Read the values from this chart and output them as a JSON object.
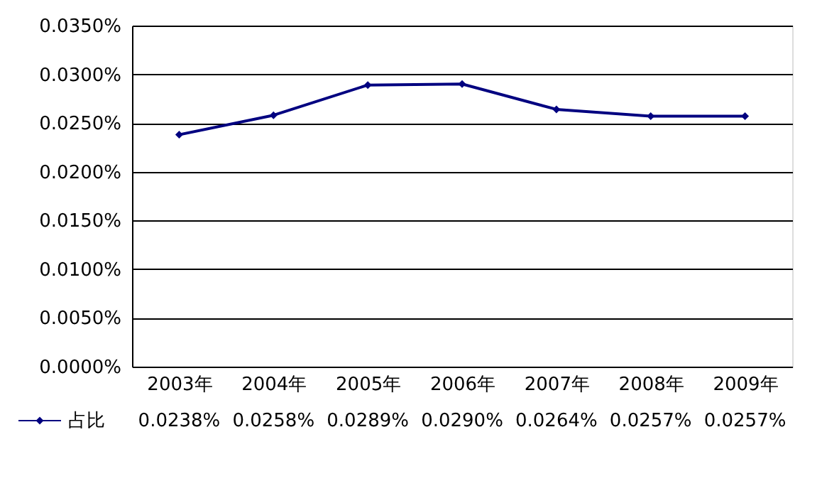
{
  "chart_data": {
    "type": "line",
    "categories": [
      "2003年",
      "2004年",
      "2005年",
      "2006年",
      "2007年",
      "2008年",
      "2009年"
    ],
    "series": [
      {
        "name": "占比",
        "color": "#000080",
        "values": [
          0.0238,
          0.0258,
          0.0289,
          0.029,
          0.0264,
          0.0257,
          0.0257
        ],
        "value_labels": [
          "0.0238%",
          "0.0258%",
          "0.0289%",
          "0.0290%",
          "0.0264%",
          "0.0257%",
          "0.0257%"
        ]
      }
    ],
    "ylim": [
      0,
      0.035
    ],
    "yticks": [
      {
        "value": 0,
        "label": "0.0000%"
      },
      {
        "value": 0.005,
        "label": "0.0050%"
      },
      {
        "value": 0.01,
        "label": "0.0100%"
      },
      {
        "value": 0.015,
        "label": "0.0150%"
      },
      {
        "value": 0.02,
        "label": "0.0200%"
      },
      {
        "value": 0.025,
        "label": "0.0250%"
      },
      {
        "value": 0.03,
        "label": "0.0300%"
      },
      {
        "value": 0.035,
        "label": "0.0350%"
      }
    ],
    "grid": "y",
    "legend": "bottom",
    "marker": "diamond",
    "line_style": "solid"
  }
}
